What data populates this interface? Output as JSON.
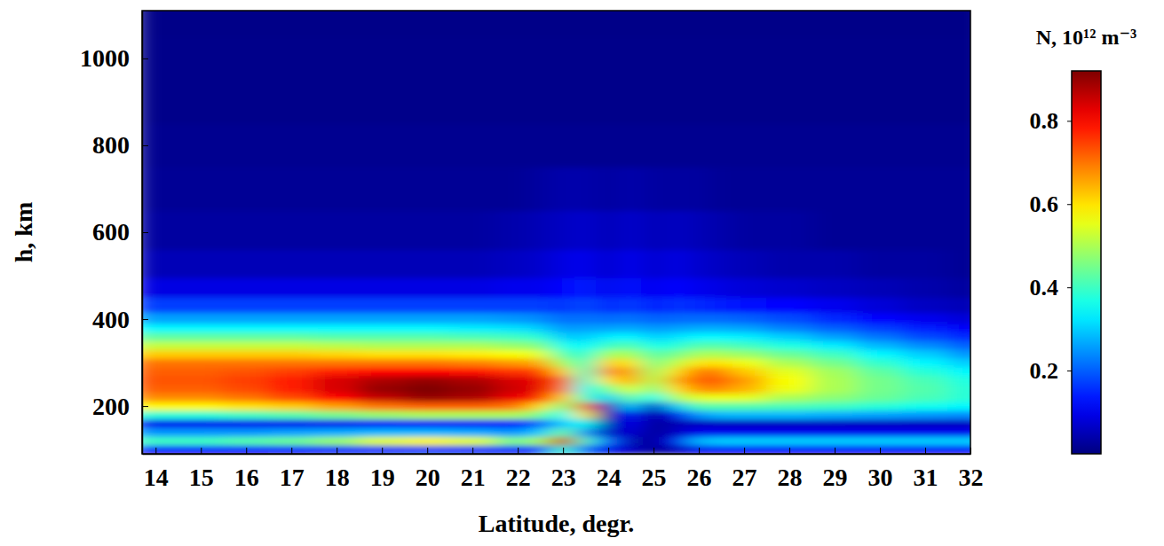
{
  "chart_data": {
    "type": "heatmap",
    "x_label": "Latitude, degr.",
    "y_label": "h, km",
    "color": "jet",
    "x": [
      14,
      15,
      16,
      17,
      18,
      19,
      20,
      21,
      22,
      22.5,
      23,
      23.5,
      24,
      24.5,
      25,
      25.5,
      26,
      26.5,
      27,
      28,
      29,
      30,
      31,
      32
    ],
    "y": [
      100,
      120,
      140,
      160,
      180,
      200,
      220,
      240,
      260,
      280,
      300,
      320,
      340,
      360,
      380,
      400,
      430,
      470,
      520,
      600,
      700,
      800,
      900,
      1000,
      1100
    ],
    "values": [
      [
        0.12,
        0.12,
        0.12,
        0.13,
        0.14,
        0.15,
        0.16,
        0.15,
        0.14,
        0.14,
        0.4,
        0.2,
        0.1,
        0.06,
        0.02,
        0.05,
        0.1,
        0.11,
        0.11,
        0.11,
        0.11,
        0.11,
        0.11,
        0.11
      ],
      [
        0.4,
        0.4,
        0.42,
        0.44,
        0.48,
        0.55,
        0.58,
        0.55,
        0.45,
        0.5,
        0.85,
        0.4,
        0.2,
        0.05,
        0.02,
        0.1,
        0.28,
        0.3,
        0.3,
        0.3,
        0.3,
        0.3,
        0.3,
        0.3
      ],
      [
        0.25,
        0.25,
        0.25,
        0.26,
        0.27,
        0.28,
        0.28,
        0.27,
        0.25,
        0.3,
        0.45,
        0.25,
        0.05,
        0.08,
        0.02,
        0.06,
        0.1,
        0.1,
        0.1,
        0.1,
        0.1,
        0.1,
        0.1,
        0.1
      ],
      [
        0.1,
        0.1,
        0.1,
        0.1,
        0.1,
        0.11,
        0.11,
        0.11,
        0.12,
        0.2,
        0.3,
        0.35,
        0.03,
        0.1,
        0.02,
        0.05,
        0.06,
        0.06,
        0.06,
        0.06,
        0.06,
        0.06,
        0.06,
        0.06
      ],
      [
        0.38,
        0.38,
        0.4,
        0.42,
        0.45,
        0.48,
        0.5,
        0.5,
        0.5,
        0.45,
        0.35,
        0.6,
        0.03,
        0.15,
        0.02,
        0.1,
        0.25,
        0.28,
        0.28,
        0.28,
        0.27,
        0.26,
        0.25,
        0.24
      ],
      [
        0.58,
        0.58,
        0.6,
        0.62,
        0.66,
        0.7,
        0.72,
        0.72,
        0.7,
        0.6,
        0.45,
        0.7,
        0.05,
        0.3,
        0.05,
        0.3,
        0.42,
        0.42,
        0.42,
        0.41,
        0.4,
        0.38,
        0.36,
        0.34
      ],
      [
        0.68,
        0.68,
        0.7,
        0.74,
        0.8,
        0.86,
        0.9,
        0.88,
        0.82,
        0.78,
        0.62,
        0.4,
        0.3,
        0.45,
        0.35,
        0.5,
        0.55,
        0.56,
        0.55,
        0.5,
        0.47,
        0.44,
        0.41,
        0.38
      ],
      [
        0.72,
        0.72,
        0.74,
        0.78,
        0.84,
        0.9,
        0.92,
        0.9,
        0.85,
        0.82,
        0.7,
        0.35,
        0.45,
        0.55,
        0.45,
        0.6,
        0.68,
        0.68,
        0.64,
        0.56,
        0.5,
        0.45,
        0.42,
        0.38
      ],
      [
        0.73,
        0.73,
        0.75,
        0.78,
        0.84,
        0.88,
        0.9,
        0.88,
        0.84,
        0.82,
        0.72,
        0.38,
        0.6,
        0.65,
        0.5,
        0.65,
        0.72,
        0.72,
        0.66,
        0.57,
        0.5,
        0.45,
        0.41,
        0.37
      ],
      [
        0.72,
        0.72,
        0.73,
        0.75,
        0.78,
        0.8,
        0.8,
        0.79,
        0.76,
        0.75,
        0.62,
        0.4,
        0.68,
        0.66,
        0.48,
        0.6,
        0.7,
        0.68,
        0.62,
        0.55,
        0.49,
        0.43,
        0.38,
        0.34
      ],
      [
        0.7,
        0.7,
        0.7,
        0.7,
        0.7,
        0.7,
        0.7,
        0.69,
        0.67,
        0.65,
        0.5,
        0.4,
        0.62,
        0.6,
        0.45,
        0.52,
        0.6,
        0.6,
        0.56,
        0.5,
        0.45,
        0.39,
        0.34,
        0.3
      ],
      [
        0.62,
        0.62,
        0.62,
        0.62,
        0.61,
        0.6,
        0.6,
        0.59,
        0.57,
        0.55,
        0.42,
        0.38,
        0.5,
        0.5,
        0.42,
        0.45,
        0.5,
        0.5,
        0.48,
        0.44,
        0.4,
        0.34,
        0.3,
        0.25
      ],
      [
        0.52,
        0.52,
        0.52,
        0.52,
        0.51,
        0.5,
        0.5,
        0.5,
        0.48,
        0.46,
        0.36,
        0.34,
        0.4,
        0.42,
        0.36,
        0.38,
        0.42,
        0.42,
        0.4,
        0.37,
        0.33,
        0.28,
        0.24,
        0.2
      ],
      [
        0.43,
        0.43,
        0.43,
        0.43,
        0.42,
        0.42,
        0.42,
        0.41,
        0.4,
        0.38,
        0.3,
        0.3,
        0.33,
        0.34,
        0.3,
        0.32,
        0.34,
        0.34,
        0.33,
        0.3,
        0.26,
        0.22,
        0.18,
        0.15
      ],
      [
        0.34,
        0.34,
        0.34,
        0.34,
        0.34,
        0.34,
        0.34,
        0.33,
        0.32,
        0.3,
        0.25,
        0.26,
        0.26,
        0.27,
        0.25,
        0.26,
        0.27,
        0.27,
        0.26,
        0.23,
        0.2,
        0.17,
        0.14,
        0.11
      ],
      [
        0.26,
        0.26,
        0.26,
        0.26,
        0.26,
        0.26,
        0.26,
        0.26,
        0.25,
        0.24,
        0.21,
        0.22,
        0.21,
        0.22,
        0.2,
        0.21,
        0.21,
        0.21,
        0.2,
        0.18,
        0.15,
        0.12,
        0.1,
        0.08
      ],
      [
        0.17,
        0.17,
        0.17,
        0.17,
        0.17,
        0.17,
        0.17,
        0.17,
        0.17,
        0.17,
        0.16,
        0.18,
        0.15,
        0.17,
        0.14,
        0.16,
        0.15,
        0.14,
        0.13,
        0.12,
        0.1,
        0.08,
        0.06,
        0.05
      ],
      [
        0.09,
        0.09,
        0.09,
        0.09,
        0.09,
        0.09,
        0.09,
        0.09,
        0.1,
        0.1,
        0.12,
        0.14,
        0.1,
        0.13,
        0.1,
        0.12,
        0.1,
        0.09,
        0.08,
        0.07,
        0.06,
        0.05,
        0.04,
        0.03
      ],
      [
        0.05,
        0.05,
        0.05,
        0.05,
        0.05,
        0.05,
        0.05,
        0.05,
        0.06,
        0.07,
        0.09,
        0.1,
        0.07,
        0.1,
        0.07,
        0.09,
        0.07,
        0.06,
        0.05,
        0.04,
        0.04,
        0.03,
        0.03,
        0.02
      ],
      [
        0.03,
        0.03,
        0.03,
        0.03,
        0.03,
        0.03,
        0.03,
        0.03,
        0.04,
        0.05,
        0.06,
        0.07,
        0.05,
        0.07,
        0.05,
        0.06,
        0.05,
        0.04,
        0.03,
        0.03,
        0.02,
        0.02,
        0.02,
        0.02
      ],
      [
        0.02,
        0.02,
        0.02,
        0.02,
        0.02,
        0.02,
        0.02,
        0.02,
        0.02,
        0.03,
        0.04,
        0.04,
        0.03,
        0.04,
        0.03,
        0.03,
        0.03,
        0.02,
        0.02,
        0.02,
        0.02,
        0.02,
        0.02,
        0.02
      ],
      [
        0.015,
        0.015,
        0.015,
        0.015,
        0.015,
        0.015,
        0.015,
        0.015,
        0.015,
        0.015,
        0.015,
        0.015,
        0.015,
        0.015,
        0.015,
        0.015,
        0.015,
        0.015,
        0.015,
        0.015,
        0.015,
        0.015,
        0.015,
        0.015
      ],
      [
        0.01,
        0.01,
        0.01,
        0.01,
        0.01,
        0.01,
        0.01,
        0.01,
        0.01,
        0.01,
        0.01,
        0.01,
        0.01,
        0.01,
        0.01,
        0.01,
        0.01,
        0.01,
        0.01,
        0.01,
        0.01,
        0.01,
        0.01,
        0.01
      ],
      [
        0.01,
        0.01,
        0.01,
        0.01,
        0.01,
        0.01,
        0.01,
        0.01,
        0.01,
        0.01,
        0.01,
        0.01,
        0.01,
        0.01,
        0.01,
        0.01,
        0.01,
        0.01,
        0.01,
        0.01,
        0.01,
        0.01,
        0.01,
        0.01
      ],
      [
        0.008,
        0.008,
        0.008,
        0.008,
        0.008,
        0.008,
        0.008,
        0.008,
        0.008,
        0.008,
        0.008,
        0.008,
        0.008,
        0.008,
        0.008,
        0.008,
        0.008,
        0.008,
        0.008,
        0.008,
        0.008,
        0.008,
        0.008,
        0.008
      ]
    ],
    "xlim": [
      13.7,
      32
    ],
    "ylim": [
      90,
      1110
    ],
    "xticks": [
      14,
      15,
      16,
      17,
      18,
      19,
      20,
      21,
      22,
      23,
      24,
      25,
      26,
      27,
      28,
      29,
      30,
      31,
      32
    ],
    "yticks": [
      200,
      400,
      600,
      800,
      1000
    ],
    "colorbar": {
      "label": "N, 10¹² m⁻³",
      "range": [
        0,
        0.92
      ],
      "ticks": [
        0.2,
        0.4,
        0.6,
        0.8
      ]
    }
  }
}
